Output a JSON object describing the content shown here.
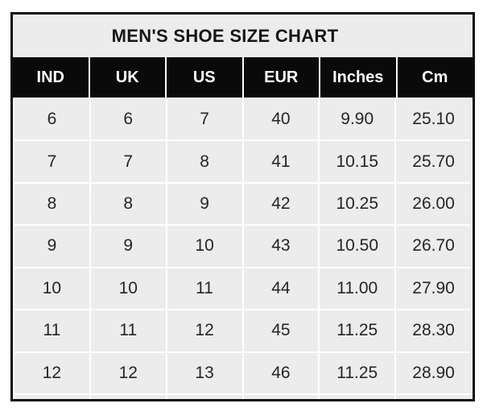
{
  "title": "MEN'S SHOE SIZE CHART",
  "colors": {
    "page_bg": "#FFFFFF",
    "border": "#0D0D0D",
    "title_bg": "#ECECEC",
    "header_bg": "#0A0A0A",
    "header_text": "#FFFFFF",
    "cell_bg": "#ECECEC",
    "grid_line": "#FFFFFF",
    "cell_text": "#252525",
    "title_text": "#161616"
  },
  "chart_data": {
    "type": "table",
    "title": "MEN'S SHOE SIZE CHART",
    "columns": [
      "IND",
      "UK",
      "US",
      "EUR",
      "Inches",
      "Cm"
    ],
    "rows": [
      [
        "6",
        "6",
        "7",
        "40",
        "9.90",
        "25.10"
      ],
      [
        "7",
        "7",
        "8",
        "41",
        "10.15",
        "25.70"
      ],
      [
        "8",
        "8",
        "9",
        "42",
        "10.25",
        "26.00"
      ],
      [
        "9",
        "9",
        "10",
        "43",
        "10.50",
        "26.70"
      ],
      [
        "10",
        "10",
        "11",
        "44",
        "11.00",
        "27.90"
      ],
      [
        "11",
        "11",
        "12",
        "45",
        "11.25",
        "28.30"
      ],
      [
        "12",
        "12",
        "13",
        "46",
        "11.25",
        "28.90"
      ]
    ],
    "layout": {
      "grid": "on",
      "header_style": "black-band",
      "title_position": "top-center"
    }
  }
}
